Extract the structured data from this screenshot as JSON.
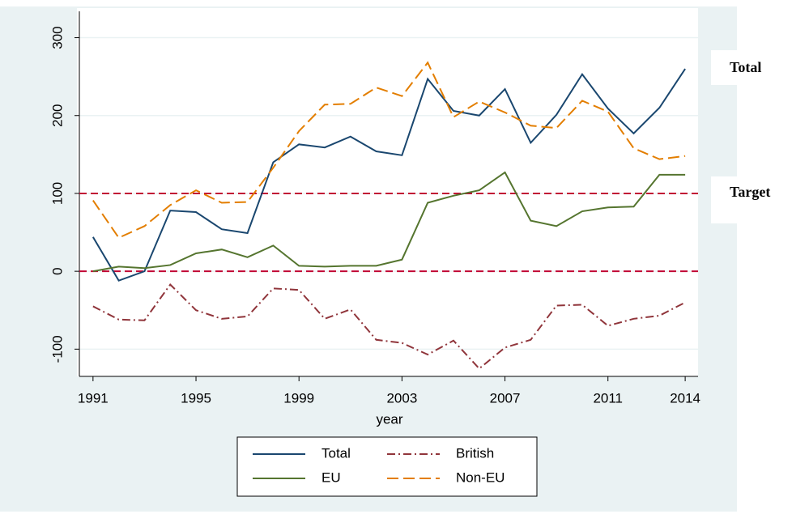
{
  "chart_data": {
    "type": "line",
    "x_label": "year",
    "x": [
      1991,
      1992,
      1993,
      1994,
      1995,
      1996,
      1997,
      1998,
      1999,
      2000,
      2001,
      2002,
      2003,
      2004,
      2005,
      2006,
      2007,
      2008,
      2009,
      2010,
      2011,
      2012,
      2013,
      2014
    ],
    "series": [
      {
        "name": "Total",
        "color": "#1a476f",
        "dash": "solid",
        "values": [
          44,
          -12,
          0,
          78,
          76,
          54,
          49,
          140,
          163,
          159,
          173,
          154,
          149,
          247,
          206,
          200,
          234,
          165,
          201,
          253,
          209,
          177,
          210,
          260
        ]
      },
      {
        "name": "British",
        "color": "#90353b",
        "dash": "dashdot",
        "values": [
          -45,
          -62,
          -63,
          -17,
          -50,
          -61,
          -58,
          -22,
          -24,
          -61,
          -49,
          -88,
          -92,
          -107,
          -89,
          -125,
          -98,
          -88,
          -44,
          -43,
          -70,
          -61,
          -57,
          -40
        ]
      },
      {
        "name": "EU",
        "color": "#55752f",
        "dash": "solid",
        "values": [
          0,
          6,
          4,
          8,
          23,
          28,
          18,
          33,
          7,
          6,
          7,
          7,
          15,
          88,
          97,
          104,
          127,
          65,
          58,
          77,
          82,
          83,
          124,
          124
        ]
      },
      {
        "name": "Non-EU",
        "color": "#e37e00",
        "dash": "longdash",
        "values": [
          91,
          43,
          58,
          85,
          104,
          88,
          89,
          133,
          180,
          214,
          215,
          236,
          225,
          268,
          198,
          218,
          204,
          187,
          184,
          219,
          205,
          158,
          144,
          148
        ]
      }
    ],
    "reference_lines": [
      100,
      0
    ],
    "reference_color": "#c10534",
    "annotations": [
      "Total",
      "Target"
    ],
    "xlim": [
      1990.47,
      2014.5
    ],
    "xticks": [
      1991,
      1995,
      1999,
      2003,
      2007,
      2011,
      2014
    ],
    "ylim": [
      -135,
      338
    ],
    "yticks": [
      -100,
      0,
      100,
      200,
      300
    ],
    "grid": true,
    "legend": "bottom"
  }
}
